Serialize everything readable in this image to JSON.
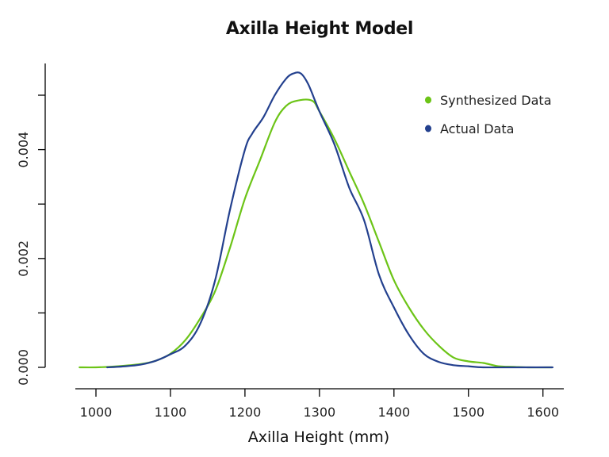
{
  "chart_data": {
    "type": "line",
    "title": "Axilla Height Model",
    "xlabel": "Axilla Height (mm)",
    "ylabel": "",
    "xlim": [
      975,
      1615
    ],
    "ylim": [
      0,
      0.0055
    ],
    "x_ticks": [
      1000,
      1100,
      1200,
      1300,
      1400,
      1500,
      1600
    ],
    "x_tick_labels": [
      "1000",
      "1100",
      "1200",
      "1300",
      "1400",
      "1500",
      "1600"
    ],
    "y_ticks": [
      0.0,
      0.001,
      0.002,
      0.003,
      0.004,
      0.005
    ],
    "y_tick_labels": [
      "0.000",
      "",
      "0.002",
      "",
      "0.004",
      ""
    ],
    "grid": false,
    "legend_position": "top-right",
    "series": [
      {
        "name": "Synthesized Data",
        "color": "#6cc417",
        "x": [
          978,
          1000,
          1030,
          1060,
          1080,
          1100,
          1120,
          1140,
          1160,
          1180,
          1200,
          1220,
          1240,
          1255,
          1270,
          1290,
          1300,
          1320,
          1340,
          1360,
          1380,
          1400,
          1420,
          1440,
          1460,
          1480,
          1500,
          1520,
          1540,
          1560,
          1580,
          1612
        ],
        "y": [
          0.0,
          0.0,
          2e-05,
          6e-05,
          0.00012,
          0.00025,
          0.0005,
          0.0009,
          0.0014,
          0.0022,
          0.0031,
          0.0038,
          0.0045,
          0.0048,
          0.0049,
          0.0049,
          0.0047,
          0.0042,
          0.0036,
          0.003,
          0.0023,
          0.0016,
          0.0011,
          0.0007,
          0.0004,
          0.00018,
          0.00011,
          8e-05,
          2e-05,
          1e-05,
          0.0,
          0.0
        ]
      },
      {
        "name": "Actual Data",
        "color": "#23408e",
        "x": [
          1015,
          1040,
          1060,
          1080,
          1100,
          1120,
          1140,
          1160,
          1180,
          1200,
          1210,
          1225,
          1240,
          1255,
          1265,
          1275,
          1285,
          1300,
          1320,
          1340,
          1360,
          1380,
          1400,
          1420,
          1440,
          1460,
          1480,
          1500,
          1520,
          1560,
          1613
        ],
        "y": [
          0.0,
          2e-05,
          5e-05,
          0.00012,
          0.00024,
          0.0004,
          0.0008,
          0.0016,
          0.0029,
          0.004,
          0.0043,
          0.0046,
          0.005,
          0.0053,
          0.0054,
          0.0054,
          0.0052,
          0.0047,
          0.0041,
          0.0033,
          0.0027,
          0.0017,
          0.0011,
          0.0006,
          0.00025,
          0.0001,
          4e-05,
          2e-05,
          0.0,
          0.0,
          0.0
        ]
      }
    ]
  },
  "legend": {
    "items": [
      {
        "label": "Synthesized Data",
        "color": "#6cc417"
      },
      {
        "label": "Actual Data",
        "color": "#23408e"
      }
    ]
  }
}
